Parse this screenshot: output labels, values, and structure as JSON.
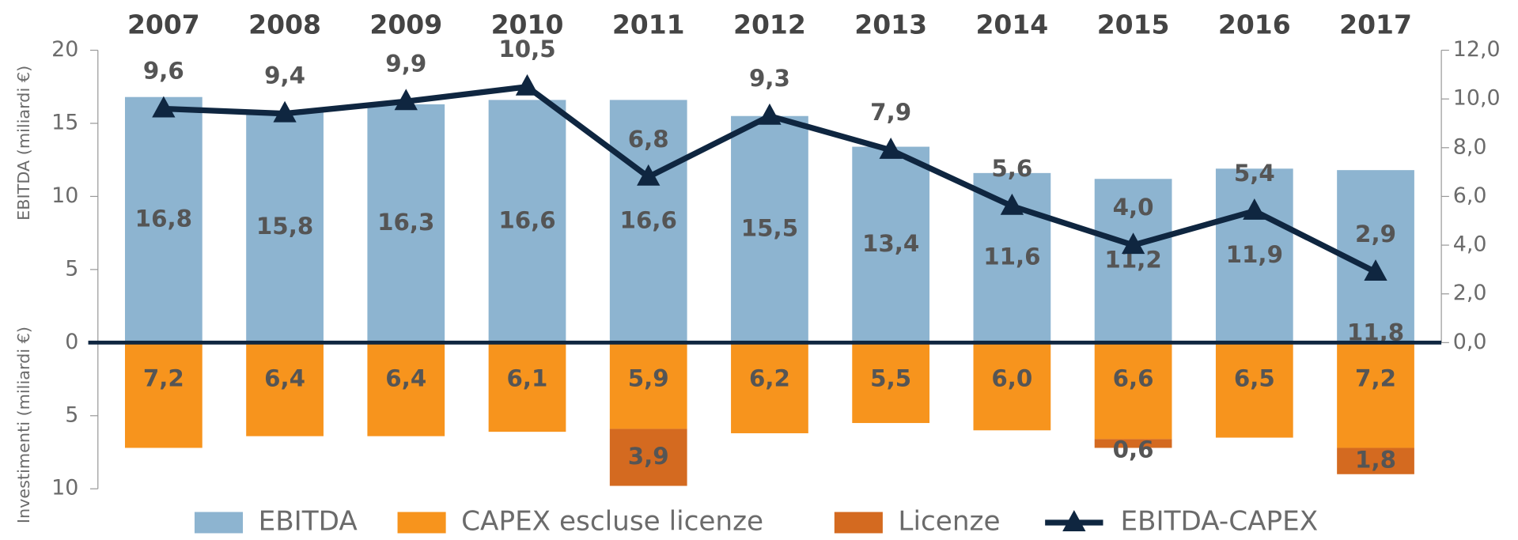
{
  "chart_data": {
    "type": "bar",
    "ylabel": "EBITDA (miliardi €)",
    "ylabel_lower": "Investimenti (miliardi €)",
    "categories": [
      "2007",
      "2008",
      "2009",
      "2010",
      "2011",
      "2012",
      "2013",
      "2014",
      "2015",
      "2016",
      "2017"
    ],
    "series": [
      {
        "name": "EBITDA",
        "color": "#8db4d0",
        "values": [
          16.8,
          15.8,
          16.3,
          16.6,
          16.6,
          15.5,
          13.4,
          11.6,
          11.2,
          11.9,
          11.8
        ],
        "value_labels": [
          "16,8",
          "15,8",
          "16,3",
          "16,6",
          "16,6",
          "15,5",
          "13,4",
          "11,6",
          "11,2",
          "11,9",
          "11,8"
        ]
      },
      {
        "name": "CAPEX escluse licenze",
        "color": "#f7941d",
        "values": [
          -7.2,
          -6.4,
          -6.4,
          -6.1,
          -5.9,
          -6.2,
          -5.5,
          -6.0,
          -6.6,
          -6.5,
          -7.2
        ],
        "value_labels": [
          "7,2",
          "6,4",
          "6,4",
          "6,1",
          "5,9",
          "6,2",
          "5,5",
          "6,0",
          "6,6",
          "6,5",
          "7,2"
        ]
      },
      {
        "name": "Licenze",
        "color": "#d46a20",
        "stacked_on": 1,
        "values": [
          null,
          null,
          null,
          null,
          -3.9,
          null,
          null,
          null,
          -0.6,
          null,
          -1.8
        ],
        "value_labels": [
          null,
          null,
          null,
          null,
          "3,9",
          null,
          null,
          null,
          "0,6",
          null,
          "1,8"
        ]
      },
      {
        "name": "EBITDA-CAPEX",
        "type": "line",
        "axis": "y2",
        "color": "#0f2640",
        "values": [
          9.6,
          9.4,
          9.9,
          10.5,
          6.8,
          9.3,
          7.9,
          5.6,
          4.0,
          5.4,
          2.9
        ],
        "value_labels": [
          "9,6",
          "9,4",
          "9,9",
          "10,5",
          "6,8",
          "9,3",
          "7,9",
          "5,6",
          "4,0",
          "5,4",
          "2,9"
        ]
      }
    ],
    "ylim": [
      -10,
      20
    ],
    "yticks": [
      20,
      15,
      10,
      5,
      0,
      {
        "value": -5,
        "label": "5"
      },
      {
        "value": -10,
        "label": "10"
      }
    ],
    "y2lim": [
      0,
      12
    ],
    "y2ticks": [
      {
        "value": 12,
        "label": "12,0"
      },
      {
        "value": 10,
        "label": "10,0"
      },
      {
        "value": 8,
        "label": "8,0"
      },
      {
        "value": 6,
        "label": "6,0"
      },
      {
        "value": 4,
        "label": "4,0"
      },
      {
        "value": 2,
        "label": "2,0"
      },
      {
        "value": 0,
        "label": "0,0"
      }
    ]
  }
}
